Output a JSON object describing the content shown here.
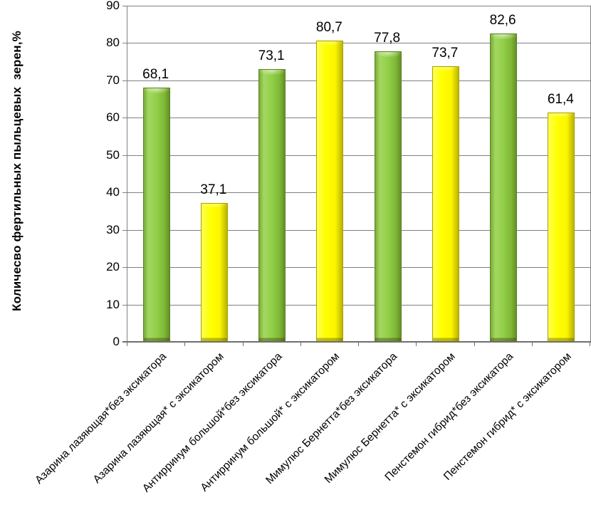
{
  "chart_data": {
    "type": "bar",
    "title": "",
    "xlabel": "",
    "ylabel": "Количесво фертильных пыльцевых  зерен,%",
    "ylim": [
      0,
      90
    ],
    "yticks": [
      0,
      10,
      20,
      30,
      40,
      50,
      60,
      70,
      80,
      90
    ],
    "grid": true,
    "legend_position": "none",
    "categories": [
      "Азарина лазяющая*без эксикатора",
      "Азарина лазяющая* с эксикатором",
      "Антирринум большой*без эксикатора",
      "Антирринум большой* с эксикатором",
      "Мимулюс Бернетта*без эксикатора",
      "Мимулюс Бернетта* с эксикатором",
      "Пенстемон гибрид*без эксикатора",
      "Пенстемон гибрид* с эксикатором"
    ],
    "values": [
      68.1,
      37.1,
      73.1,
      80.7,
      77.8,
      73.7,
      82.6,
      61.4
    ],
    "value_labels": [
      "68,1",
      "37,1",
      "73,1",
      "80,7",
      "77,8",
      "73,7",
      "82,6",
      "61,4"
    ],
    "bar_color_keys": [
      "green",
      "yellow",
      "green",
      "yellow",
      "green",
      "yellow",
      "green",
      "yellow"
    ],
    "colors": {
      "green": "#92D050",
      "yellow": "#FFFF00",
      "gridline": "#808080",
      "axis": "#6E6E6E",
      "text": "#000000",
      "background": "#FFFFFF"
    }
  }
}
